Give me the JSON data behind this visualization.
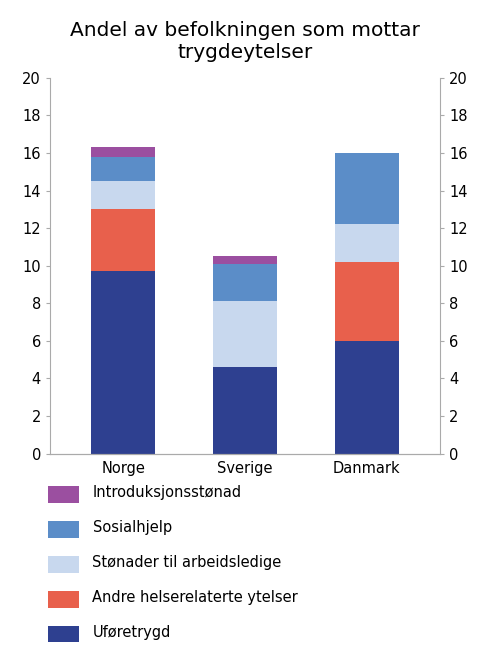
{
  "title": "Andel av befolkningen som mottar\ntrygdeytelser",
  "categories": [
    "Norge",
    "Sverige",
    "Danmark"
  ],
  "series": {
    "Uføretrygd": [
      9.7,
      4.6,
      6.0
    ],
    "Andre helserelaterte ytelser": [
      3.3,
      0.0,
      4.2
    ],
    "Stønader til arbeidsledige": [
      1.5,
      3.5,
      2.0
    ],
    "Sosialhjelp": [
      1.3,
      2.0,
      3.8
    ],
    "Introduksjonsstønad": [
      0.5,
      0.4,
      0.0
    ]
  },
  "colors": {
    "Uføretrygd": "#2E4090",
    "Andre helserelaterte ytelser": "#E8604C",
    "Stønader til arbeidsledige": "#C8D8EE",
    "Sosialhjelp": "#5B8DC8",
    "Introduksjonsstønad": "#9B4FA0"
  },
  "ylim": [
    0,
    20
  ],
  "yticks": [
    0,
    2,
    4,
    6,
    8,
    10,
    12,
    14,
    16,
    18,
    20
  ],
  "bar_width": 0.52,
  "background_color": "#FFFFFF",
  "title_fontsize": 14.5,
  "tick_fontsize": 10.5,
  "legend_fontsize": 10.5
}
